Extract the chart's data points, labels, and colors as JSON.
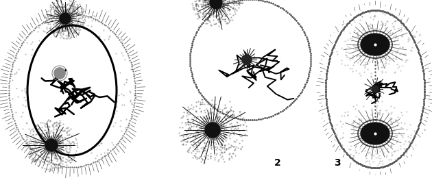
{
  "fig_width": 6.3,
  "fig_height": 2.6,
  "dpi": 100,
  "bg_color": "#ffffff",
  "label_2": "2",
  "label_3": "3",
  "label_fontsize": 10
}
